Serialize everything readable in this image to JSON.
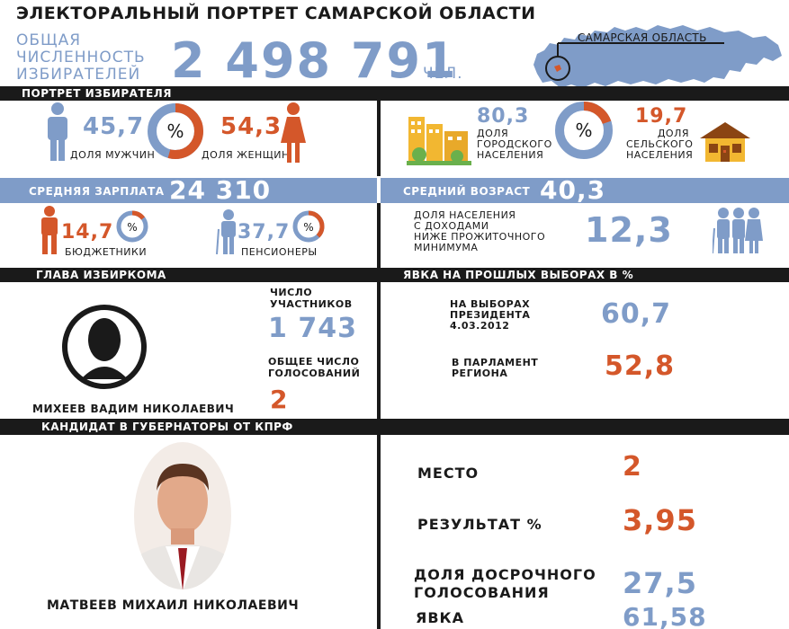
{
  "title": "ЭЛЕКТОРАЛЬНЫЙ ПОРТРЕТ САМАРСКОЙ ОБЛАСТИ",
  "voters": {
    "label_line1": "ОБЩАЯ",
    "label_line2": "ЧИСЛЕННОСТЬ",
    "label_line3": "ИЗБИРАТЕЛЕЙ",
    "value": "2 498 791",
    "unit": "ЧЕЛ."
  },
  "map": {
    "region_label": "САМАРСКАЯ ОБЛАСТЬ"
  },
  "sections": {
    "portrait": "ПОРТРЕТ ИЗБИРАТЕЛЯ",
    "head": "ГЛАВА ИЗБИРКОМА",
    "turnout": "ЯВКА НА ПРОШЛЫХ ВЫБОРАХ В %",
    "candidate": "КАНДИДАТ В ГУБЕРНАТОРЫ ОТ КПРФ"
  },
  "gender": {
    "men_value": "45,7",
    "men_label": "ДОЛЯ МУЖЧИН",
    "women_value": "54,3",
    "women_label": "ДОЛЯ ЖЕНЩИН",
    "symbol": "%"
  },
  "settlement": {
    "urban_value": "80,3",
    "urban_l1": "ДОЛЯ",
    "urban_l2": "ГОРОДСКОГО",
    "urban_l3": "НАСЕЛЕНИЯ",
    "rural_value": "19,7",
    "rural_l1": "ДОЛЯ",
    "rural_l2": "СЕЛЬСКОГО",
    "rural_l3": "НАСЕЛЕНИЯ",
    "symbol": "%"
  },
  "salary": {
    "label": "СРЕДНЯЯ ЗАРПЛАТА",
    "value": "24 310"
  },
  "age": {
    "label": "СРЕДНИЙ ВОЗРАСТ",
    "value": "40,3"
  },
  "employment": {
    "budget_value": "14,7",
    "budget_label": "БЮДЖЕТНИКИ",
    "pension_value": "37,7",
    "pension_label": "ПЕНСИОНЕРЫ",
    "symbol": "%"
  },
  "poverty": {
    "l1": "ДОЛЯ НАСЕЛЕНИЯ",
    "l2": "С ДОХОДАМИ",
    "l3": "НИЖЕ ПРОЖИТОЧНОГО",
    "l4": "МИНИМУМА",
    "value": "12,3"
  },
  "commission": {
    "name": "МИХЕЕВ ВАДИМ НИКОЛАЕВИЧ",
    "participants_l1": "ЧИСЛО",
    "participants_l2": "УЧАСТНИКОВ",
    "participants_value": "1 743",
    "votes_l1": "ОБЩЕЕ ЧИСЛО",
    "votes_l2": "ГОЛОСОВАНИЙ",
    "votes_value": "2"
  },
  "past": {
    "pres_l1": "НА ВЫБОРАХ",
    "pres_l2": "ПРЕЗИДЕНТА",
    "pres_l3": "4.03.2012",
    "pres_value": "60,7",
    "parl_l1": "В ПАРЛАМЕНТ",
    "parl_l2": "РЕГИОНА",
    "parl_value": "52,8"
  },
  "candidate": {
    "name": "МАТВЕЕВ МИХАИЛ НИКОЛАЕВИЧ",
    "place_label": "МЕСТО",
    "place_value": "2",
    "result_label": "РЕЗУЛЬТАТ %",
    "result_value": "3,95",
    "early_l1": "ДОЛЯ ДОСРОЧНОГО",
    "early_l2": "ГОЛОСОВАНИЯ",
    "early_value": "27,5",
    "turnout_label": "ЯВКА",
    "turnout_value": "61,58"
  },
  "colors": {
    "blue": "#7f9cc8",
    "orange": "#d4572a",
    "dark": "#1a1a1a"
  }
}
